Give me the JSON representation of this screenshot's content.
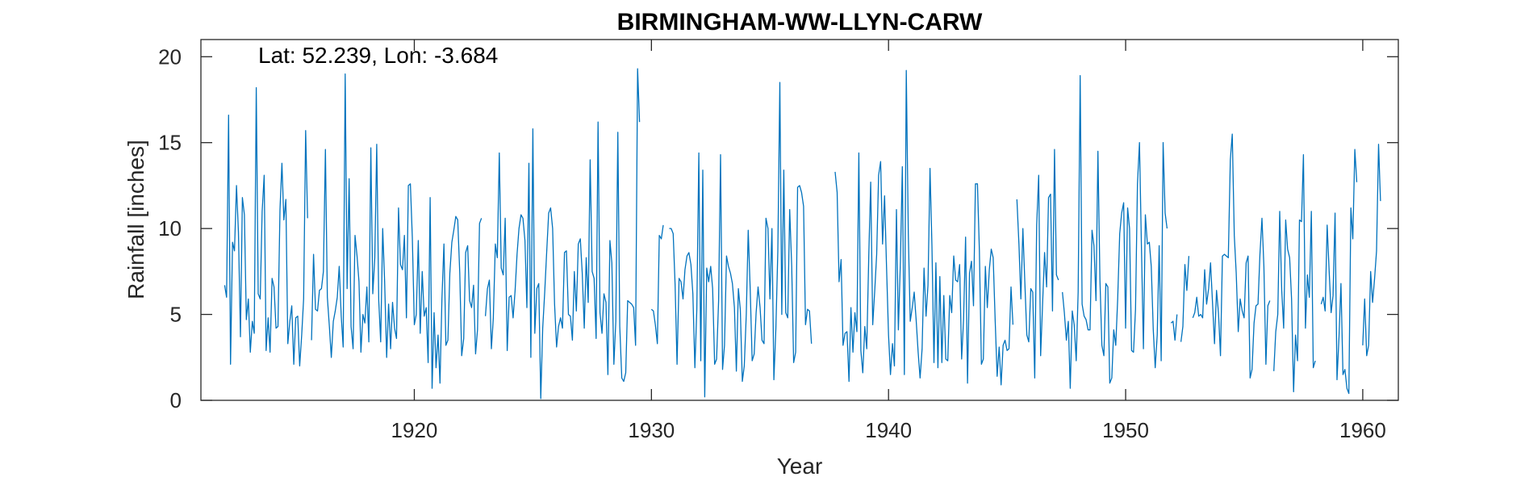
{
  "chart_data": {
    "type": "line",
    "title": "BIRMINGHAM-WW-LLYN-CARW",
    "annotation": "Lat: 52.239, Lon: -3.684",
    "xlabel": "Year",
    "ylabel": "Rainfall [inches]",
    "xlim": [
      1911,
      1961.5
    ],
    "ylim": [
      0,
      21
    ],
    "xticks": [
      1920,
      1930,
      1940,
      1950,
      1960
    ],
    "yticks": [
      0,
      5,
      10,
      15,
      20
    ],
    "grid": false,
    "line_color": "#0072BD",
    "x_start": 1912.0,
    "x_step": 0.08333,
    "values": [
      6.7,
      6.0,
      16.6,
      2.1,
      9.2,
      8.7,
      12.5,
      9.8,
      3.7,
      11.8,
      10.8,
      4.7,
      5.9,
      2.8,
      4.6,
      3.9,
      18.2,
      6.2,
      5.9,
      11.0,
      13.1,
      2.9,
      4.8,
      2.8,
      7.1,
      6.6,
      4.2,
      4.3,
      11.1,
      13.8,
      10.5,
      11.7,
      3.3,
      4.6,
      5.5,
      2.1,
      4.8,
      4.9,
      2.0,
      3.8,
      5.9,
      15.7,
      10.6,
      null,
      3.5,
      8.5,
      5.3,
      5.2,
      6.4,
      6.5,
      7.5,
      14.6,
      6.0,
      4.3,
      2.5,
      4.6,
      5.2,
      6.0,
      7.8,
      4.9,
      3.1,
      19.0,
      6.5,
      12.9,
      4.3,
      3.0,
      9.6,
      8.4,
      6.9,
      2.8,
      5.0,
      4.5,
      6.6,
      3.4,
      14.7,
      6.2,
      8.3,
      14.9,
      5.8,
      3.4,
      10.0,
      6.9,
      2.5,
      5.6,
      3.0,
      5.7,
      4.2,
      3.6,
      11.2,
      7.9,
      7.6,
      9.6,
      4.8,
      12.5,
      12.6,
      9.5,
      4.4,
      5.0,
      9.3,
      3.9,
      7.5,
      4.9,
      5.4,
      2.2,
      11.8,
      0.7,
      5.1,
      1.9,
      3.8,
      1.0,
      5.9,
      9.1,
      3.2,
      3.5,
      7.4,
      9.2,
      9.9,
      10.7,
      10.5,
      7.4,
      2.6,
      3.6,
      8.6,
      9.0,
      5.8,
      5.4,
      6.7,
      2.7,
      4.1,
      10.3,
      10.6,
      null,
      4.9,
      6.5,
      7.0,
      3.0,
      4.8,
      9.1,
      8.3,
      14.4,
      7.7,
      7.3,
      10.6,
      2.9,
      6.0,
      6.1,
      4.8,
      6.4,
      8.5,
      10.0,
      10.8,
      10.6,
      9.3,
      5.4,
      13.8,
      2.5,
      15.8,
      3.9,
      6.5,
      6.8,
      0.1,
      4.2,
      6.3,
      8.6,
      10.9,
      11.2,
      10.0,
      5.6,
      3.1,
      4.3,
      4.8,
      4.2,
      8.6,
      8.7,
      5.0,
      4.9,
      3.5,
      7.5,
      5.2,
      9.1,
      9.4,
      7.4,
      4.2,
      8.3,
      5.7,
      14.0,
      7.5,
      7.1,
      3.6,
      16.2,
      5.1,
      3.9,
      6.2,
      5.7,
      1.5,
      9.3,
      8.0,
      2.1,
      4.6,
      15.6,
      4.3,
      1.3,
      1.1,
      1.6,
      5.8,
      5.7,
      5.6,
      5.4,
      3.2,
      19.3,
      16.2,
      null,
      null,
      null,
      null,
      null,
      5.3,
      5.2,
      4.4,
      3.3,
      9.6,
      9.4,
      10.2,
      null,
      null,
      10.0,
      10.0,
      9.7,
      6.7,
      2.1,
      7.1,
      6.9,
      5.9,
      7.6,
      8.4,
      8.6,
      7.9,
      6.2,
      1.9,
      5.3,
      14.4,
      2.3,
      13.4,
      0.2,
      7.7,
      6.9,
      7.8,
      6.5,
      2.1,
      2.4,
      5.8,
      14.3,
      1.8,
      3.2,
      8.4,
      7.8,
      7.4,
      6.8,
      5.4,
      1.7,
      6.5,
      5.3,
      1.1,
      2.0,
      5.0,
      9.9,
      6.4,
      2.3,
      2.7,
      5.1,
      6.6,
      5.4,
      3.5,
      3.3,
      10.6,
      10.0,
      5.9,
      10.0,
      1.2,
      4.2,
      8.7,
      18.5,
      5.0,
      13.4,
      5.1,
      4.8,
      11.1,
      7.8,
      2.2,
      2.8,
      12.4,
      12.5,
      12.1,
      11.3,
      4.4,
      5.3,
      5.2,
      3.3,
      null,
      null,
      null,
      null,
      null,
      null,
      null,
      null,
      null,
      null,
      null,
      13.3,
      12.1,
      6.9,
      8.2,
      3.2,
      3.9,
      4.0,
      1.1,
      5.4,
      2.8,
      5.1,
      4.0,
      14.4,
      2.9,
      1.6,
      4.3,
      3.0,
      8.4,
      12.7,
      4.4,
      6.3,
      8.5,
      13.1,
      13.9,
      9.1,
      11.9,
      7.8,
      3.8,
      1.5,
      3.3,
      2.0,
      11.1,
      4.1,
      8.1,
      13.6,
      1.5,
      19.2,
      9.7,
      4.6,
      5.4,
      6.3,
      4.7,
      2.8,
      1.3,
      3.0,
      7.7,
      4.9,
      6.7,
      13.5,
      9.0,
      2.2,
      8.0,
      1.9,
      7.2,
      2.2,
      6.1,
      2.4,
      2.3,
      6.1,
      5.1,
      8.4,
      7.0,
      6.9,
      7.9,
      2.4,
      4.7,
      9.5,
      1.0,
      7.4,
      8.1,
      5.5,
      12.6,
      12.6,
      8.7,
      2.1,
      2.4,
      7.8,
      5.4,
      7.6,
      8.8,
      8.3,
      4.6,
      1.4,
      3.1,
      0.9,
      3.2,
      3.5,
      2.9,
      3.0,
      6.6,
      4.4,
      null,
      11.7,
      9.1,
      5.9,
      10.0,
      6.9,
      3.8,
      3.4,
      6.5,
      6.3,
      1.3,
      10.2,
      13.1,
      2.6,
      5.7,
      8.6,
      6.6,
      11.8,
      12.0,
      5.2,
      14.6,
      7.3,
      7.0,
      null,
      6.3,
      5.1,
      3.5,
      4.6,
      0.7,
      5.2,
      4.4,
      2.3,
      6.3,
      18.9,
      5.6,
      4.9,
      4.7,
      4.1,
      4.1,
      9.9,
      9.0,
      5.8,
      14.5,
      7.0,
      3.2,
      2.6,
      6.8,
      6.6,
      1.0,
      1.3,
      4.1,
      3.2,
      5.9,
      9.7,
      10.9,
      11.5,
      4.2,
      11.2,
      10.0,
      2.9,
      2.8,
      5.3,
      12.6,
      15.0,
      9.0,
      3.0,
      10.8,
      9.1,
      9.2,
      7.8,
      4.1,
      1.9,
      3.8,
      9.0,
      2.3,
      15.0,
      10.9,
      10.0,
      null,
      4.5,
      4.6,
      3.5,
      5.0,
      null,
      3.4,
      4.3,
      7.9,
      6.4,
      8.4,
      null,
      4.8,
      5.1,
      6.0,
      4.9,
      5.0,
      4.8,
      7.6,
      5.6,
      6.5,
      8.0,
      5.6,
      3.3,
      6.4,
      5.1,
      2.6,
      8.4,
      8.5,
      8.4,
      8.3,
      14.0,
      15.5,
      9.6,
      7.4,
      4.0,
      5.9,
      5.2,
      4.8,
      8.0,
      8.4,
      1.3,
      1.8,
      4.5,
      5.5,
      5.6,
      8.5,
      10.6,
      7.8,
      2.1,
      5.5,
      5.8,
      null,
      1.7,
      4.0,
      5.0,
      11.0,
      6.4,
      4.2,
      10.5,
      8.8,
      8.3,
      5.9,
      0.5,
      3.8,
      2.3,
      10.5,
      10.4,
      14.3,
      4.2,
      7.3,
      6.0,
      11.0,
      1.9,
      2.3,
      null,
      null,
      5.6,
      6.0,
      5.2,
      10.2,
      7.6,
      5.1,
      6.1,
      10.9,
      1.2,
      3.7,
      6.8,
      1.5,
      1.8,
      0.7,
      0.4,
      11.2,
      9.4,
      14.6,
      12.7,
      null,
      null,
      3.2,
      5.9,
      2.6,
      3.2,
      7.5,
      5.7,
      7.1,
      8.7,
      14.9,
      11.6
    ]
  }
}
